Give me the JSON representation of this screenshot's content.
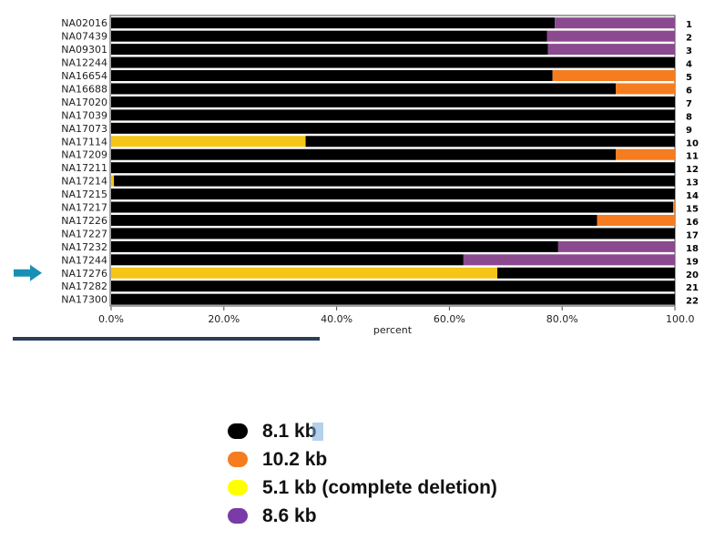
{
  "chart_data": {
    "type": "bar",
    "orientation": "horizontal-stacked-percent",
    "xlabel": "percent",
    "xlim": [
      0,
      100
    ],
    "xticks": [
      "0.0%",
      "20.0%",
      "40.0%",
      "60.0%",
      "80.0%",
      "100.0"
    ],
    "grid": false,
    "categories": [
      "NA02016",
      "NA07439",
      "NA09301",
      "NA12244",
      "NA16654",
      "NA16688",
      "NA17020",
      "NA17039",
      "NA17073",
      "NA17114",
      "NA17209",
      "NA17211",
      "NA17214",
      "NA17215",
      "NA17217",
      "NA17226",
      "NA17227",
      "NA17232",
      "NA17244",
      "NA17276",
      "NA17282",
      "NA17300"
    ],
    "row_numbers": [
      "1",
      "2",
      "3",
      "4",
      "5",
      "6",
      "7",
      "8",
      "9",
      "10",
      "11",
      "12",
      "13",
      "14",
      "15",
      "16",
      "17",
      "18",
      "19",
      "20",
      "21",
      "22"
    ],
    "highlighted_category": "NA17276",
    "series": [
      {
        "name": "5.1 kb (complete deletion)",
        "color": "#f5c518",
        "values": [
          0,
          0,
          0,
          0,
          0,
          0,
          0,
          0,
          0,
          34.5,
          0,
          0,
          0.5,
          0,
          0,
          0,
          0,
          0,
          0,
          68.5,
          0,
          0
        ]
      },
      {
        "name": "8.1 kb",
        "color": "#000000",
        "values": [
          78.7,
          77.3,
          77.5,
          100,
          78.3,
          89.5,
          100,
          100,
          100,
          65.5,
          89.5,
          100,
          99.5,
          100,
          99.7,
          86.2,
          100,
          79.3,
          62.5,
          31.5,
          100,
          100
        ]
      },
      {
        "name": "10.2 kb",
        "color": "#f57c1f",
        "values": [
          0,
          0,
          0,
          0,
          21.7,
          10.5,
          0,
          0,
          0,
          0,
          10.5,
          0,
          0,
          0,
          0.3,
          13.8,
          0,
          0,
          0,
          0,
          0,
          0
        ]
      },
      {
        "name": "8.6 kb",
        "color": "#8b4a8f",
        "values": [
          21.3,
          22.7,
          22.5,
          0,
          0,
          0,
          0,
          0,
          0,
          0,
          0,
          0,
          0,
          0,
          0,
          0,
          0,
          20.7,
          37.5,
          0,
          0,
          0
        ]
      }
    ]
  },
  "legend": {
    "items": [
      {
        "label": "8.1 kb",
        "color": "#000000"
      },
      {
        "label": "10.2 kb",
        "color": "#f57c1f"
      },
      {
        "label": "5.1 kb (complete deletion)",
        "color": "#ffff00"
      },
      {
        "label": "8.6 kb",
        "color": "#7a3aa8"
      }
    ]
  },
  "marker": {
    "icon": "right-arrow-icon",
    "color": "#1a8fb5"
  }
}
